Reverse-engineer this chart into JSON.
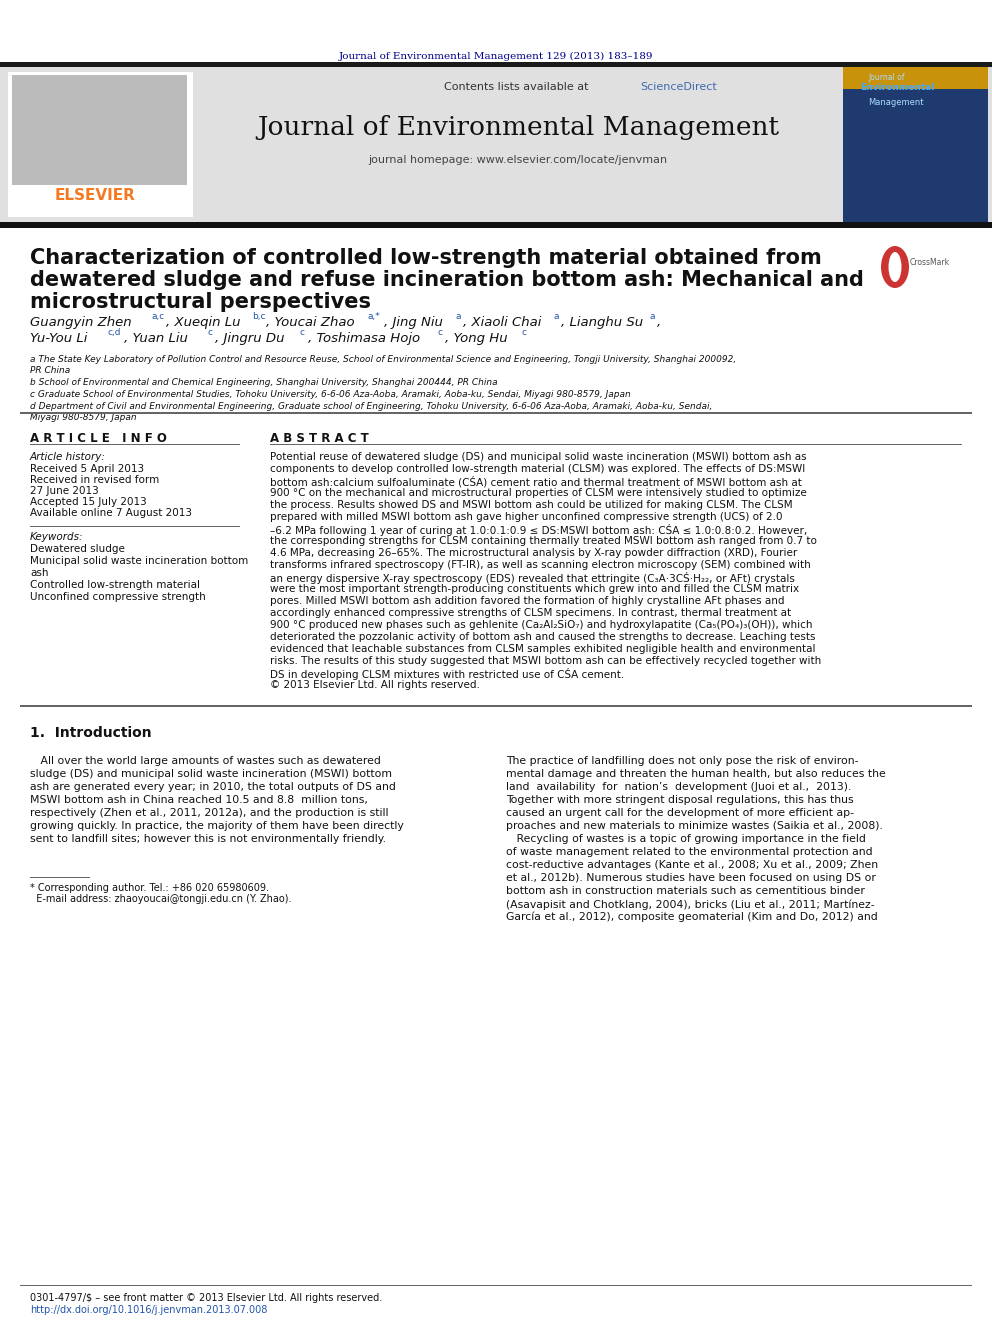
{
  "header_journal_line": "Journal of Environmental Management 129 (2013) 183–189",
  "contents_line": "Contents lists available at ",
  "sciencedirect_text": "ScienceDirect",
  "sciencedirect_color": "#4169b0",
  "journal_title": "Journal of Environmental Management",
  "journal_homepage": "journal homepage: www.elsevier.com/locate/jenvman",
  "elsevier_color": "#f47920",
  "header_bg": "#e0e0e0",
  "paper_title_line1": "Characterization of controlled low-strength material obtained from",
  "paper_title_line2": "dewatered sludge and refuse incineration bottom ash: Mechanical and",
  "paper_title_line3": "microstructural perspectives",
  "affil_a": "a The State Key Laboratory of Pollution Control and Resource Reuse, School of Environmental Science and Engineering, Tongji University, Shanghai 200092,\nPR China",
  "affil_b": "b School of Environmental and Chemical Engineering, Shanghai University, Shanghai 200444, PR China",
  "affil_c": "c Graduate School of Environmental Studies, Tohoku University, 6-6-06 Aza-Aoba, Aramaki, Aoba-ku, Sendai, Miyagi 980-8579, Japan",
  "affil_d": "d Department of Civil and Environmental Engineering, Graduate school of Engineering, Tohoku University, 6-6-06 Aza-Aoba, Aramaki, Aoba-ku, Sendai,\nMiyagi 980-8579, Japan",
  "article_info_title": "A R T I C L E   I N F O",
  "abstract_title": "A B S T R A C T",
  "article_history_title": "Article history:",
  "received": "Received 5 April 2013",
  "received_revised1": "Received in revised form",
  "received_revised2": "27 June 2013",
  "accepted": "Accepted 15 July 2013",
  "available": "Available online 7 August 2013",
  "keywords_title": "Keywords:",
  "kw1": "Dewatered sludge",
  "kw2": "Municipal solid waste incineration bottom",
  "kw3": "ash",
  "kw4": "Controlled low-strength material",
  "kw5": "Unconfined compressive strength",
  "abstract_text_lines": [
    "Potential reuse of dewatered sludge (DS) and municipal solid waste incineration (MSWI) bottom ash as",
    "components to develop controlled low-strength material (CLSM) was explored. The effects of DS:MSWI",
    "bottom ash:calcium sulfoaluminate (CŚA) cement ratio and thermal treatment of MSWI bottom ash at",
    "900 °C on the mechanical and microstructural properties of CLSM were intensively studied to optimize",
    "the process. Results showed DS and MSWI bottom ash could be utilized for making CLSM. The CLSM",
    "prepared with milled MSWI bottom ash gave higher unconfined compressive strength (UCS) of 2.0",
    "–6.2 MPa following 1 year of curing at 1.0:0.1:0.9 ≤ DS:MSWI bottom ash: CŚA ≤ 1.0:0.8:0.2. However,",
    "the corresponding strengths for CLSM containing thermally treated MSWI bottom ash ranged from 0.7 to",
    "4.6 MPa, decreasing 26–65%. The microstructural analysis by X-ray powder diffraction (XRD), Fourier",
    "transforms infrared spectroscopy (FT-IR), as well as scanning electron microscopy (SEM) combined with",
    "an energy dispersive X-ray spectroscopy (EDS) revealed that ettringite (C₃A·3CŚ·H₂₂, or AFt) crystals",
    "were the most important strength-producing constituents which grew into and filled the CLSM matrix",
    "pores. Milled MSWI bottom ash addition favored the formation of highly crystalline AFt phases and",
    "accordingly enhanced compressive strengths of CLSM specimens. In contrast, thermal treatment at",
    "900 °C produced new phases such as gehlenite (Ca₂Al₂SiO₇) and hydroxylapatite (Ca₅(PO₄)₃(OH)), which",
    "deteriorated the pozzolanic activity of bottom ash and caused the strengths to decrease. Leaching tests",
    "evidenced that leachable substances from CLSM samples exhibited negligible health and environmental",
    "risks. The results of this study suggested that MSWI bottom ash can be effectively recycled together with",
    "DS in developing CLSM mixtures with restricted use of CŚA cement.",
    "© 2013 Elsevier Ltd. All rights reserved."
  ],
  "intro_title": "1.  Introduction",
  "intro_col1_lines": [
    "   All over the world large amounts of wastes such as dewatered",
    "sludge (DS) and municipal solid waste incineration (MSWI) bottom",
    "ash are generated every year; in 2010, the total outputs of DS and",
    "MSWI bottom ash in China reached 10.5 and 8.8  million tons,",
    "respectively (Zhen et al., 2011, 2012a), and the production is still",
    "growing quickly. In practice, the majority of them have been directly",
    "sent to landfill sites; however this is not environmentally friendly."
  ],
  "intro_col2_lines": [
    "The practice of landfilling does not only pose the risk of environ-",
    "mental damage and threaten the human health, but also reduces the",
    "land  availability  for  nation’s  development (Juoi et al.,  2013).",
    "Together with more stringent disposal regulations, this has thus",
    "caused an urgent call for the development of more efficient ap-",
    "proaches and new materials to minimize wastes (Saikia et al., 2008).",
    "   Recycling of wastes is a topic of growing importance in the field",
    "of waste management related to the environmental protection and",
    "cost-reductive advantages (Kante et al., 2008; Xu et al., 2009; Zhen",
    "et al., 2012b). Numerous studies have been focused on using DS or",
    "bottom ash in construction materials such as cementitious binder",
    "(Asavapisit and Chotklang, 2004), bricks (Liu et al., 2011; Martínez-",
    "García et al., 2012), composite geomaterial (Kim and Do, 2012) and"
  ],
  "footnote_line1": "* Corresponding author. Tel.: +86 020 65980609.",
  "footnote_line2": "  E-mail address: zhaoyoucai@tongji.edu.cn (Y. Zhao).",
  "footer_line1": "0301-4797/$ – see front matter © 2013 Elsevier Ltd. All rights reserved.",
  "footer_line2": "http://dx.doi.org/10.1016/j.jenvman.2013.07.008",
  "bg_color": "#ffffff",
  "navy": "#00008B",
  "orange": "#f47920",
  "blue_link": "#2255aa",
  "dark": "#111111",
  "gray_bg": "#e0e0e0",
  "divider": "#666666"
}
